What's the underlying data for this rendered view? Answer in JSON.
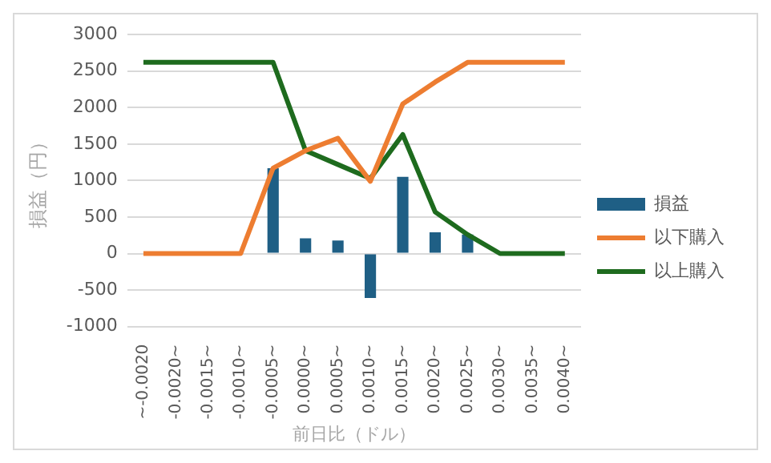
{
  "chart_data": {
    "type": "bar",
    "categories": [
      "~-0.0020",
      "-0.0020~",
      "-0.0015~",
      "-0.0010~",
      "-0.0005~",
      "0.0000~",
      "0.0005~",
      "0.0010~",
      "0.0015~",
      "0.0020~",
      "0.0025~",
      "0.0030~",
      "0.0035~",
      "0.0040~"
    ],
    "series": [
      {
        "name": "損益",
        "color": "#1f5f85",
        "values": [
          0,
          0,
          0,
          0,
          1170,
          210,
          180,
          -610,
          1050,
          290,
          260,
          0,
          0,
          0
        ]
      },
      {
        "name": "以下購入",
        "type": "line",
        "color": "#ed7d31",
        "values": [
          0,
          0,
          0,
          0,
          1170,
          1410,
          1580,
          990,
          2050,
          2350,
          2620,
          2620,
          2620,
          2620
        ]
      },
      {
        "name": "以上購入",
        "type": "line",
        "color": "#1e6b1e",
        "values": [
          2620,
          2620,
          2620,
          2620,
          2620,
          1410,
          1220,
          1030,
          1630,
          570,
          260,
          0,
          0,
          0
        ]
      }
    ],
    "xlabel": "前日比（ドル）",
    "ylabel": "損益（円）",
    "ylim": [
      -1000,
      3000
    ],
    "yticks": [
      -1000,
      -500,
      0,
      500,
      1000,
      1500,
      2000,
      2500,
      3000
    ],
    "grid": "y",
    "legend": "right",
    "marker": "none",
    "line_style": "solid"
  }
}
